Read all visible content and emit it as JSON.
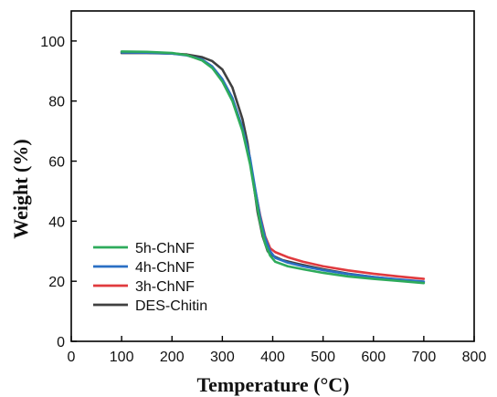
{
  "chart_data": {
    "type": "line",
    "title": "",
    "xlabel": "Temperature (°C)",
    "ylabel": "Weight (%)",
    "xlim": [
      0,
      800
    ],
    "ylim": [
      0,
      110
    ],
    "xticks": [
      0,
      100,
      200,
      300,
      400,
      500,
      600,
      700,
      800
    ],
    "yticks": [
      0,
      20,
      40,
      60,
      80,
      100
    ],
    "grid": false,
    "legend_position": "bottom-left",
    "series": [
      {
        "name": "5h-ChNF",
        "color": "#2eab5b",
        "x": [
          100,
          150,
          200,
          230,
          260,
          280,
          300,
          320,
          340,
          355,
          365,
          375,
          385,
          395,
          405,
          430,
          460,
          500,
          550,
          600,
          650,
          700
        ],
        "y": [
          96.5,
          96.4,
          96.0,
          95.3,
          93.5,
          91.0,
          86.5,
          80.0,
          70.0,
          59.0,
          49.0,
          39.5,
          32.5,
          28.5,
          26.5,
          25.0,
          24.0,
          22.8,
          21.6,
          20.8,
          20.1,
          19.4
        ]
      },
      {
        "name": "4h-ChNF",
        "color": "#2a6fc4",
        "x": [
          100,
          150,
          200,
          230,
          260,
          280,
          300,
          320,
          340,
          355,
          365,
          375,
          385,
          395,
          405,
          430,
          460,
          500,
          550,
          600,
          650,
          700
        ],
        "y": [
          96.2,
          96.1,
          95.8,
          95.2,
          93.8,
          91.5,
          87.3,
          81.0,
          71.0,
          61.0,
          51.0,
          41.5,
          34.5,
          30.0,
          27.8,
          26.2,
          25.0,
          23.7,
          22.4,
          21.4,
          20.6,
          19.9
        ]
      },
      {
        "name": "3h-ChNF",
        "color": "#e03a3e",
        "x": [
          100,
          150,
          200,
          230,
          260,
          280,
          300,
          320,
          340,
          355,
          365,
          375,
          385,
          395,
          405,
          430,
          460,
          500,
          550,
          600,
          650,
          700
        ],
        "y": [
          96.3,
          96.2,
          95.9,
          95.3,
          93.6,
          91.2,
          87.0,
          80.5,
          70.5,
          60.0,
          50.5,
          42.0,
          35.0,
          31.0,
          29.7,
          28.0,
          26.5,
          25.0,
          23.6,
          22.5,
          21.6,
          20.8
        ]
      },
      {
        "name": "DES-Chitin",
        "color": "#404040",
        "x": [
          100,
          150,
          200,
          230,
          260,
          280,
          300,
          320,
          340,
          350,
          360,
          370,
          380,
          390,
          400,
          420,
          450,
          500,
          550,
          600,
          650,
          700
        ],
        "y": [
          96.0,
          96.0,
          95.8,
          95.5,
          94.6,
          93.3,
          90.5,
          84.5,
          74.0,
          66.0,
          55.0,
          43.0,
          35.0,
          30.0,
          28.5,
          27.0,
          25.8,
          24.0,
          22.5,
          21.4,
          20.5,
          19.7
        ]
      }
    ]
  }
}
